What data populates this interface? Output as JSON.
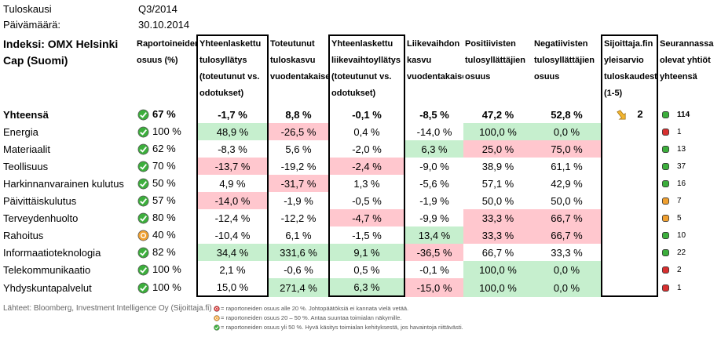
{
  "info": [
    {
      "label": "Tuloskausi",
      "value": "Q3/2014"
    },
    {
      "label": "Päivämäärä:",
      "value": "30.10.2014"
    }
  ],
  "table": {
    "headers": [
      "Indeksi: OMX Helsinki Cap (Suomi)",
      "Raportoineiden osuus (%)",
      "Yhteenlaskettu tulosyllätys (toteutunut vs. odotukset)",
      "Toteutunut tuloskasvu vuodentakaisesta",
      "Yhteenlaskettu liikevaihtoyllätys (toteutunut vs. odotukset)",
      "Liikevaihdon kasvu vuodentakaisesta",
      "Positiivisten tulosyllättäjien osuus",
      "Negatiivisten tulosyllättäjien osuus",
      "Sijoittaja.fin yleisarvio tuloskaudesta (1-5)",
      "Seurannassa olevat yhtiöt yhteensä"
    ],
    "boxed_columns": [
      2,
      4,
      8
    ],
    "rows": [
      {
        "label": "Yhteensä",
        "total": true,
        "status": "green",
        "cells": [
          "67 %",
          "-1,7 %",
          "8,8 %",
          "-0,1 %",
          "-8,5 %",
          "47,2 %",
          "52,8 %"
        ],
        "rating": "2",
        "companies": "114",
        "dot": "green"
      },
      {
        "label": "Energia",
        "status": "green",
        "cells": [
          "100 %",
          {
            "text": "48,9 %",
            "bg": "green"
          },
          {
            "text": "-26,5 %",
            "bg": "red"
          },
          "0,4 %",
          "-14,0 %",
          {
            "text": "100,0 %",
            "bg": "green"
          },
          {
            "text": "0,0 %",
            "bg": "green"
          }
        ],
        "companies": "1",
        "dot": "red"
      },
      {
        "label": "Materiaalit",
        "status": "green",
        "cells": [
          "62 %",
          "-8,3 %",
          "5,6 %",
          "-2,0 %",
          {
            "text": "6,3 %",
            "bg": "green"
          },
          {
            "text": "25,0 %",
            "bg": "red"
          },
          {
            "text": "75,0 %",
            "bg": "red"
          }
        ],
        "companies": "13",
        "dot": "green"
      },
      {
        "label": "Teollisuus",
        "status": "green",
        "cells": [
          "70 %",
          {
            "text": "-13,7 %",
            "bg": "red"
          },
          "-19,2 %",
          {
            "text": "-2,4 %",
            "bg": "red"
          },
          "-9,0 %",
          "38,9 %",
          "61,1 %"
        ],
        "companies": "37",
        "dot": "green"
      },
      {
        "label": "Harkinnanvarainen kulutus",
        "status": "green",
        "cells": [
          "50 %",
          "4,9 %",
          {
            "text": "-31,7 %",
            "bg": "red"
          },
          "1,3 %",
          "-5,6 %",
          "57,1 %",
          "42,9 %"
        ],
        "companies": "16",
        "dot": "green"
      },
      {
        "label": "Päivittäiskulutus",
        "status": "green",
        "cells": [
          "57 %",
          {
            "text": "-14,0 %",
            "bg": "red"
          },
          "-1,9 %",
          "-0,5 %",
          "-1,9 %",
          "50,0 %",
          "50,0 %"
        ],
        "companies": "7",
        "dot": "orange"
      },
      {
        "label": "Terveydenhuolto",
        "status": "green",
        "cells": [
          "80 %",
          "-12,4 %",
          "-12,2 %",
          {
            "text": "-4,7 %",
            "bg": "red"
          },
          "-9,9 %",
          {
            "text": "33,3 %",
            "bg": "red"
          },
          {
            "text": "66,7 %",
            "bg": "red"
          }
        ],
        "companies": "5",
        "dot": "orange"
      },
      {
        "label": "Rahoitus",
        "status": "orange",
        "cells": [
          "40 %",
          "-10,4 %",
          "6,1 %",
          "-1,5 %",
          {
            "text": "13,4 %",
            "bg": "green"
          },
          {
            "text": "33,3 %",
            "bg": "red"
          },
          {
            "text": "66,7 %",
            "bg": "red"
          }
        ],
        "companies": "10",
        "dot": "green"
      },
      {
        "label": "Informaatioteknologia",
        "status": "green",
        "cells": [
          "82 %",
          {
            "text": "34,4 %",
            "bg": "green"
          },
          {
            "text": "331,6 %",
            "bg": "green"
          },
          {
            "text": "9,1 %",
            "bg": "green"
          },
          {
            "text": "-36,5 %",
            "bg": "red"
          },
          "66,7 %",
          "33,3 %"
        ],
        "companies": "22",
        "dot": "green"
      },
      {
        "label": "Telekommunikaatio",
        "status": "green",
        "cells": [
          "100 %",
          "2,1 %",
          "-0,6 %",
          "0,5 %",
          "-0,1 %",
          {
            "text": "100,0 %",
            "bg": "green"
          },
          {
            "text": "0,0 %",
            "bg": "green"
          }
        ],
        "companies": "2",
        "dot": "red"
      },
      {
        "label": "Yhdyskuntapalvelut",
        "status": "green",
        "cells": [
          "100 %",
          "15,0 %",
          {
            "text": "271,4 %",
            "bg": "green"
          },
          {
            "text": "6,3 %",
            "bg": "green"
          },
          {
            "text": "-15,0 %",
            "bg": "red"
          },
          {
            "text": "100,0 %",
            "bg": "green"
          },
          {
            "text": "0,0 %",
            "bg": "green"
          }
        ],
        "companies": "1",
        "dot": "red"
      }
    ]
  },
  "footer": {
    "source": "Lähteet: Bloomberg, Investment Intelligence Oy (Sijoittaja.fi)",
    "legend": [
      {
        "color": "red",
        "text": "= raportoneiden osuus alle 20 %. Johtopäätöksiä ei kannata vielä vetää."
      },
      {
        "color": "orange",
        "text": "= raportoneiden osuus 20 – 50 %. Antaa suuntaa toimialan näkymille."
      },
      {
        "color": "green",
        "text": "= raportoneiden osuus yli 50 %. Hyvä käsitys toimialan kehityksestä, jos havaintoja riittävästi."
      }
    ]
  }
}
